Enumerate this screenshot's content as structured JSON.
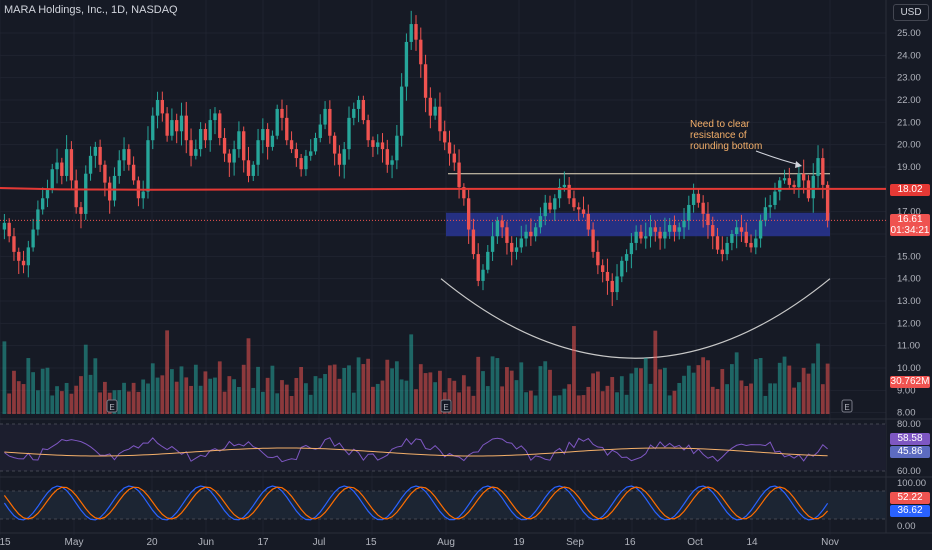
{
  "header": {
    "title": "MARA Holdings, Inc., 1D, NASDAQ",
    "currency": "USD"
  },
  "annotation": [
    "Need to clear",
    "resistance of",
    "rounding bottom"
  ],
  "price_axis": {
    "ticks": [
      "25.00",
      "24.00",
      "23.00",
      "22.00",
      "21.00",
      "20.00",
      "19.00",
      "17.00",
      "15.00",
      "14.00",
      "13.00",
      "12.00",
      "11.00",
      "10.00",
      "9.00",
      "8.00"
    ]
  },
  "time_axis": {
    "labels": [
      "15",
      "May",
      "20",
      "Jun",
      "17",
      "Jul",
      "15",
      "Aug",
      "19",
      "Sep",
      "16",
      "Oct",
      "14",
      "Nov"
    ]
  },
  "tags": {
    "ma_value": "18.02",
    "last_price": "16.61",
    "countdown": "01:34:21",
    "volume_value": "30.762M",
    "rsi_value": "58.58",
    "rsi_ma_value": "45.86",
    "stoch_k_value": "52.22",
    "stoch_d_value": "36.62"
  },
  "rsi_axis": {
    "ticks": [
      "80.00",
      "60.00"
    ]
  },
  "stoch_axis": {
    "ticks": [
      "100.00",
      "50.00",
      "0.00"
    ]
  },
  "colors": {
    "background": "#161a25",
    "up": "#26a69a",
    "down": "#ef5350",
    "ma": "#e53935",
    "zone": "#283593",
    "rsi": "#7e57c2",
    "rsi_ma": "#f5b06a",
    "stoch_k": "#2962ff",
    "stoch_d": "#ff6d00"
  },
  "chart_data": {
    "type": "candlestick",
    "symbol": "MARA Holdings, Inc.",
    "interval": "1D",
    "exchange": "NASDAQ",
    "resistance_level": 18.7,
    "moving_average_level": 18.02,
    "support_zone": [
      15.9,
      16.95
    ],
    "last_price": 16.61,
    "rounding_bottom": {
      "start": 14.0,
      "low": 11.8,
      "end": 14.0
    },
    "closes": [
      16.5,
      15.9,
      15.2,
      14.8,
      14.6,
      15.4,
      16.2,
      17.1,
      17.6,
      18.0,
      18.9,
      19.2,
      18.6,
      19.8,
      18.4,
      17.2,
      16.9,
      18.7,
      19.5,
      19.9,
      19.1,
      18.3,
      17.5,
      18.6,
      19.3,
      19.8,
      19.1,
      18.4,
      17.6,
      17.9,
      20.2,
      21.3,
      22.0,
      21.4,
      20.4,
      21.1,
      20.6,
      21.3,
      20.2,
      19.5,
      19.8,
      20.7,
      20.2,
      21.1,
      21.4,
      20.3,
      19.6,
      19.2,
      19.8,
      20.6,
      19.3,
      18.6,
      19.1,
      20.2,
      20.7,
      19.9,
      20.4,
      21.6,
      21.2,
      20.2,
      19.8,
      19.4,
      18.9,
      19.5,
      19.7,
      20.3,
      20.9,
      21.6,
      20.4,
      19.6,
      19.1,
      19.8,
      21.2,
      21.6,
      22.0,
      21.1,
      20.2,
      19.9,
      20.1,
      19.8,
      19.1,
      19.3,
      20.4,
      22.6,
      24.6,
      25.4,
      24.7,
      23.6,
      22.1,
      21.3,
      21.7,
      20.6,
      20.1,
      19.6,
      19.2,
      18.1,
      17.6,
      16.2,
      15.1,
      13.9,
      14.4,
      15.2,
      15.9,
      16.6,
      16.3,
      15.6,
      15.2,
      15.4,
      15.8,
      16.1,
      15.9,
      16.3,
      16.8,
      17.4,
      17.1,
      17.6,
      18.1,
      18.2,
      17.6,
      17.2,
      17.1,
      16.9,
      16.2,
      15.2,
      14.6,
      14.3,
      13.9,
      13.4,
      14.1,
      14.8,
      15.1,
      15.6,
      16.1,
      15.8,
      15.9,
      16.3,
      16.1,
      15.8,
      16.1,
      16.4,
      16.1,
      16.3,
      16.6,
      17.3,
      17.8,
      17.4,
      16.9,
      16.4,
      15.9,
      15.3,
      15.1,
      15.6,
      16.0,
      16.3,
      16.1,
      15.6,
      15.4,
      15.8,
      16.6,
      17.2,
      17.3,
      17.9,
      18.4,
      18.5,
      18.2,
      18.1,
      18.7,
      18.4,
      17.6,
      18.6,
      19.4,
      18.2,
      16.6
    ]
  }
}
